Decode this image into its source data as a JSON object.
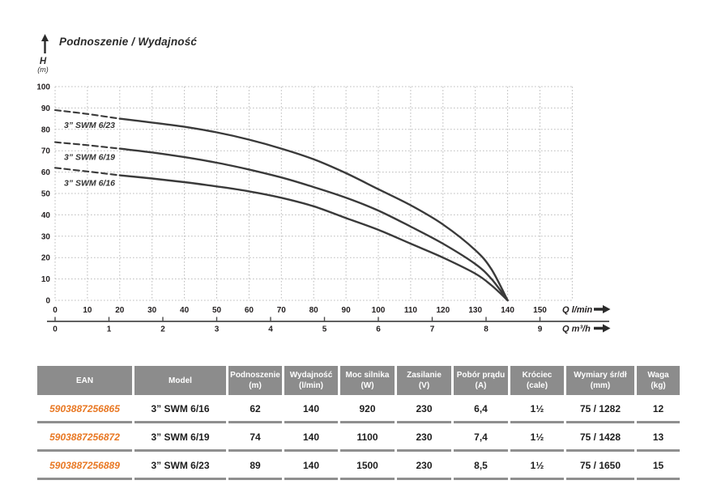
{
  "chart_data": {
    "type": "line",
    "title": "Podnoszenie / Wydajność",
    "ylabel": "H",
    "ylabel_unit": "(m)",
    "xlabel_primary": "Q l/min",
    "xlabel_secondary": "Q m³/h",
    "xlim_lmin": [
      0,
      160
    ],
    "xlim_m3h": [
      0,
      9
    ],
    "ylim": [
      0,
      100
    ],
    "grid": true,
    "y_ticks": [
      0,
      10,
      20,
      30,
      40,
      50,
      60,
      70,
      80,
      90,
      100
    ],
    "x_ticks_lmin": [
      0,
      10,
      20,
      30,
      40,
      50,
      60,
      70,
      80,
      90,
      100,
      110,
      120,
      130,
      140,
      150
    ],
    "x_ticks_m3h": [
      0,
      1,
      2,
      3,
      4,
      5,
      6,
      7,
      8,
      9
    ],
    "series": [
      {
        "name": "3” SWM 6/23",
        "dashed_below_q": 20,
        "points": [
          [
            0,
            89
          ],
          [
            10,
            87.2
          ],
          [
            20,
            85
          ],
          [
            30,
            83.2
          ],
          [
            40,
            81.2
          ],
          [
            50,
            78.6
          ],
          [
            60,
            75.2
          ],
          [
            70,
            71
          ],
          [
            80,
            66
          ],
          [
            90,
            59.5
          ],
          [
            100,
            52
          ],
          [
            110,
            44.5
          ],
          [
            120,
            35.5
          ],
          [
            130,
            23.5
          ],
          [
            135,
            14.5
          ],
          [
            140,
            0
          ]
        ]
      },
      {
        "name": "3” SWM 6/19",
        "dashed_below_q": 20,
        "points": [
          [
            0,
            74
          ],
          [
            10,
            72.6
          ],
          [
            20,
            71
          ],
          [
            30,
            69.2
          ],
          [
            40,
            67
          ],
          [
            50,
            64.4
          ],
          [
            60,
            61.2
          ],
          [
            70,
            57.5
          ],
          [
            80,
            53
          ],
          [
            90,
            48
          ],
          [
            100,
            42
          ],
          [
            110,
            34.5
          ],
          [
            120,
            26.5
          ],
          [
            130,
            17
          ],
          [
            135,
            10
          ],
          [
            140,
            0
          ]
        ]
      },
      {
        "name": "3” SWM 6/16",
        "dashed_below_q": 20,
        "points": [
          [
            0,
            62
          ],
          [
            10,
            60.3
          ],
          [
            20,
            58.5
          ],
          [
            30,
            57
          ],
          [
            40,
            55.3
          ],
          [
            50,
            53.3
          ],
          [
            60,
            51
          ],
          [
            70,
            48
          ],
          [
            80,
            44
          ],
          [
            90,
            38.5
          ],
          [
            100,
            33
          ],
          [
            110,
            26.5
          ],
          [
            120,
            20
          ],
          [
            130,
            12.5
          ],
          [
            135,
            7
          ],
          [
            140,
            0
          ]
        ]
      }
    ]
  },
  "table": {
    "columns": [
      {
        "title": "EAN",
        "unit": ""
      },
      {
        "title": "Model",
        "unit": ""
      },
      {
        "title": "Podnoszenie",
        "unit": "(m)"
      },
      {
        "title": "Wydajność",
        "unit": "(l/min)"
      },
      {
        "title": "Moc silnika",
        "unit": "(W)"
      },
      {
        "title": "Zasilanie",
        "unit": "(V)"
      },
      {
        "title": "Pobór prądu",
        "unit": "(A)"
      },
      {
        "title": "Króciec",
        "unit": "(cale)"
      },
      {
        "title": "Wymiary śr/dł",
        "unit": "(mm)"
      },
      {
        "title": "Waga",
        "unit": "(kg)"
      }
    ],
    "rows": [
      {
        "ean": "5903887256865",
        "model": "3” SWM 6/16",
        "values": [
          "62",
          "140",
          "920",
          "230",
          "6,4",
          "1½",
          "75 / 1282",
          "12"
        ]
      },
      {
        "ean": "5903887256872",
        "model": "3” SWM 6/19",
        "values": [
          "74",
          "140",
          "1100",
          "230",
          "7,4",
          "1½",
          "75 / 1428",
          "13"
        ]
      },
      {
        "ean": "5903887256889",
        "model": "3” SWM 6/23",
        "values": [
          "89",
          "140",
          "1500",
          "230",
          "8,5",
          "1½",
          "75 / 1650",
          "15"
        ]
      }
    ]
  },
  "colors": {
    "curve": "#3a3a3a",
    "grid": "#bcbcbc",
    "axis": "#4a4a4a",
    "header_bg": "#8c8c8c",
    "ean_orange": "#e87722",
    "text": "#231f20"
  }
}
